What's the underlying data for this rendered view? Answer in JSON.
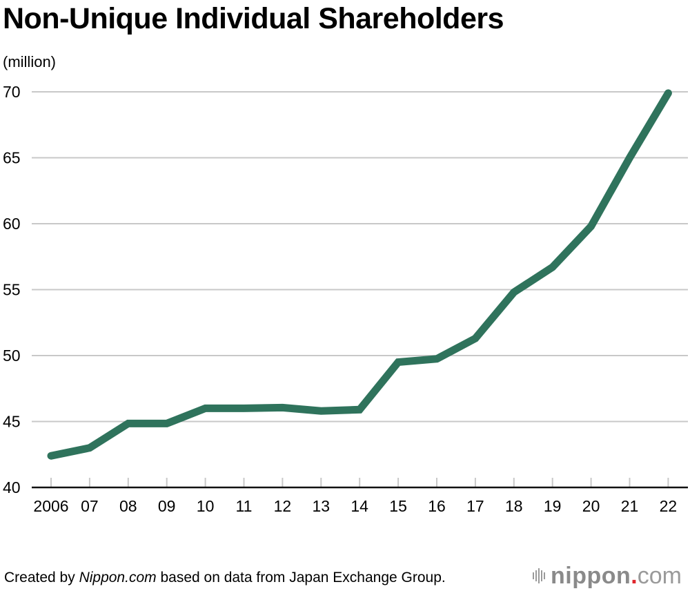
{
  "chart_data": {
    "type": "line",
    "title": "Non-Unique Individual Shareholders",
    "unit_label": "(million)",
    "xlabel": "",
    "ylabel": "(million)",
    "categories": [
      "2006",
      "07",
      "08",
      "09",
      "10",
      "11",
      "12",
      "13",
      "14",
      "15",
      "16",
      "17",
      "18",
      "19",
      "20",
      "21",
      "22"
    ],
    "years": [
      2006,
      2007,
      2008,
      2009,
      2010,
      2011,
      2012,
      2013,
      2014,
      2015,
      2016,
      2017,
      2018,
      2019,
      2020,
      2021,
      2022
    ],
    "series": [
      {
        "name": "Non-unique individual shareholders",
        "color": "#2f735c",
        "values": [
          42.4,
          43.0,
          44.85,
          44.85,
          46.0,
          46.0,
          46.05,
          45.8,
          45.9,
          49.5,
          49.75,
          51.3,
          54.8,
          56.7,
          59.8,
          65.0,
          69.9
        ]
      }
    ],
    "ylim": [
      40,
      70
    ],
    "yticks": [
      40,
      45,
      50,
      55,
      60,
      65,
      70
    ],
    "grid": true,
    "legend": "none"
  },
  "footer": {
    "prefix": "Created by ",
    "source_name": "Nippon.com",
    "suffix": " based on data from Japan Exchange Group."
  },
  "logo": {
    "word": "nippon",
    "dot": ".",
    "tld": "com"
  }
}
